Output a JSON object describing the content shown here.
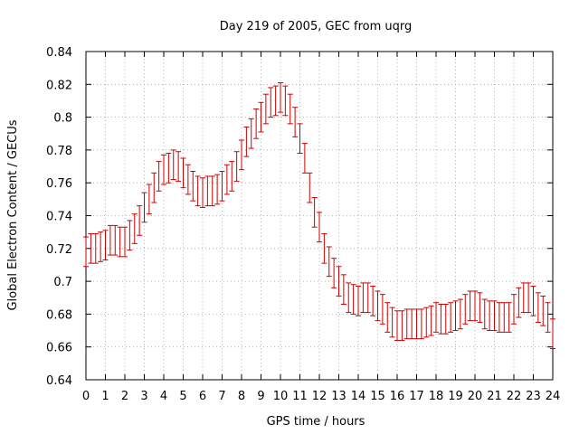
{
  "chart_data": {
    "type": "line",
    "title": "Day 219 of 2005, GEC from uqrg",
    "xlabel": "GPS time / hours",
    "ylabel": "Global Electron Content / GECUs",
    "xlim": [
      0,
      24
    ],
    "ylim": [
      0.64,
      0.84
    ],
    "x_ticks": [
      "0",
      "1",
      "2",
      "3",
      "4",
      "5",
      "6",
      "7",
      "8",
      "9",
      "10",
      "11",
      "12",
      "13",
      "14",
      "15",
      "16",
      "17",
      "18",
      "19",
      "20",
      "21",
      "22",
      "23",
      "24"
    ],
    "y_ticks": [
      "0.64",
      "0.66",
      "0.68",
      "0.7",
      "0.72",
      "0.74",
      "0.76",
      "0.78",
      "0.8",
      "0.82",
      "0.84"
    ],
    "grid": true,
    "color": "#cc0000",
    "series": [
      {
        "error_bar": 0.009,
        "x": [
          0,
          0.25,
          0.5,
          0.75,
          1,
          1.25,
          1.5,
          1.75,
          2,
          2.25,
          2.5,
          2.75,
          3,
          3.25,
          3.5,
          3.75,
          4,
          4.25,
          4.5,
          4.75,
          5,
          5.25,
          5.5,
          5.75,
          6,
          6.25,
          6.5,
          6.75,
          7,
          7.25,
          7.5,
          7.75,
          8,
          8.25,
          8.5,
          8.75,
          9,
          9.25,
          9.5,
          9.75,
          10,
          10.25,
          10.5,
          10.75,
          11,
          11.25,
          11.5,
          11.75,
          12,
          12.25,
          12.5,
          12.75,
          13,
          13.25,
          13.5,
          13.75,
          14,
          14.25,
          14.5,
          14.75,
          15,
          15.25,
          15.5,
          15.75,
          16,
          16.25,
          16.5,
          16.75,
          17,
          17.25,
          17.5,
          17.75,
          18,
          18.25,
          18.5,
          18.75,
          19,
          19.25,
          19.5,
          19.75,
          20,
          20.25,
          20.5,
          20.75,
          21,
          21.25,
          21.5,
          21.75,
          22,
          22.25,
          22.5,
          22.75,
          23,
          23.25,
          23.5,
          23.75,
          24
        ],
        "y": [
          0.718,
          0.72,
          0.72,
          0.721,
          0.722,
          0.725,
          0.725,
          0.724,
          0.724,
          0.728,
          0.732,
          0.737,
          0.745,
          0.75,
          0.757,
          0.764,
          0.768,
          0.769,
          0.771,
          0.77,
          0.766,
          0.762,
          0.758,
          0.755,
          0.754,
          0.755,
          0.755,
          0.756,
          0.758,
          0.762,
          0.764,
          0.77,
          0.777,
          0.785,
          0.79,
          0.796,
          0.8,
          0.805,
          0.809,
          0.81,
          0.812,
          0.81,
          0.805,
          0.797,
          0.787,
          0.775,
          0.757,
          0.742,
          0.733,
          0.72,
          0.712,
          0.705,
          0.7,
          0.695,
          0.69,
          0.689,
          0.688,
          0.69,
          0.69,
          0.688,
          0.685,
          0.683,
          0.678,
          0.675,
          0.673,
          0.673,
          0.674,
          0.674,
          0.674,
          0.674,
          0.675,
          0.676,
          0.678,
          0.677,
          0.677,
          0.678,
          0.679,
          0.68,
          0.683,
          0.685,
          0.685,
          0.684,
          0.68,
          0.679,
          0.679,
          0.678,
          0.678,
          0.678,
          0.683,
          0.687,
          0.69,
          0.69,
          0.688,
          0.684,
          0.682,
          0.678,
          0.668
        ]
      }
    ]
  }
}
